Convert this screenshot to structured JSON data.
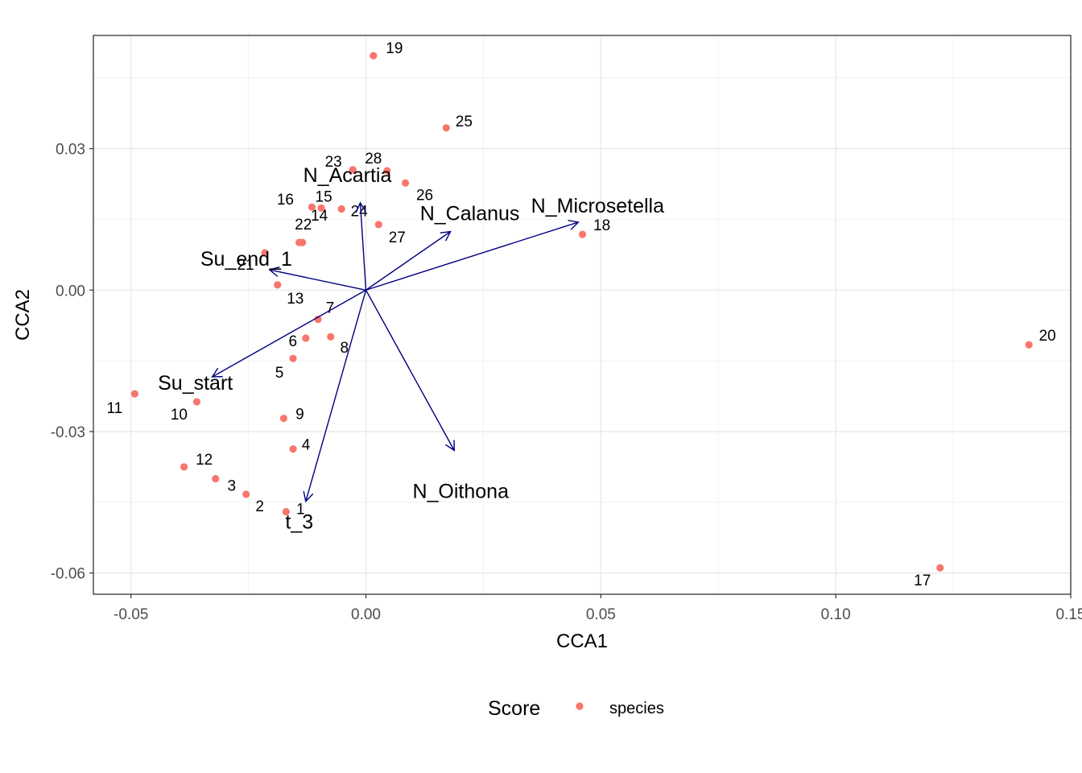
{
  "chart_data": {
    "type": "scatter",
    "xlabel": "CCA1",
    "ylabel": "CCA2",
    "xlim": [
      -0.058,
      0.15
    ],
    "ylim": [
      -0.0645,
      0.054
    ],
    "x_ticks": [
      -0.05,
      0.0,
      0.05,
      0.1,
      0.15
    ],
    "x_tick_labels": [
      "-0.05",
      "0.00",
      "0.05",
      "0.10",
      "0.15"
    ],
    "y_ticks": [
      -0.06,
      -0.03,
      0.0,
      0.03
    ],
    "y_tick_labels": [
      "-0.06",
      "-0.03",
      "0.00",
      "0.03"
    ],
    "grid": true,
    "legend": {
      "title": "Score",
      "position": "bottom",
      "entries": [
        {
          "label": "species",
          "color": "#F8766D"
        }
      ]
    },
    "series": [
      {
        "name": "species",
        "color": "#F8766D",
        "points": [
          {
            "label": "1",
            "x": -0.017,
            "y": -0.047
          },
          {
            "label": "2",
            "x": -0.0255,
            "y": -0.0433
          },
          {
            "label": "3",
            "x": -0.032,
            "y": -0.04
          },
          {
            "label": "4",
            "x": -0.0155,
            "y": -0.0337
          },
          {
            "label": "5",
            "x": -0.0155,
            "y": -0.0145
          },
          {
            "label": "6",
            "x": -0.0128,
            "y": -0.0102
          },
          {
            "label": "7",
            "x": -0.0102,
            "y": -0.0062
          },
          {
            "label": "8",
            "x": -0.0075,
            "y": -0.0099
          },
          {
            "label": "9",
            "x": -0.0175,
            "y": -0.0272
          },
          {
            "label": "10",
            "x": -0.036,
            "y": -0.0237
          },
          {
            "label": "11",
            "x": -0.0492,
            "y": -0.022
          },
          {
            "label": "12",
            "x": -0.0387,
            "y": -0.0375
          },
          {
            "label": "13",
            "x": -0.0188,
            "y": 0.0011
          },
          {
            "label": "14",
            "x": -0.0142,
            "y": 0.0101
          },
          {
            "label": "15",
            "x": -0.0095,
            "y": 0.0174
          },
          {
            "label": "16",
            "x": -0.0115,
            "y": 0.0176
          },
          {
            "label": "17",
            "x": 0.1222,
            "y": -0.0589
          },
          {
            "label": "18",
            "x": 0.0461,
            "y": 0.0118
          },
          {
            "label": "19",
            "x": 0.0016,
            "y": 0.0497
          },
          {
            "label": "20",
            "x": 0.1411,
            "y": -0.0116
          },
          {
            "label": "21",
            "x": -0.0215,
            "y": 0.0079
          },
          {
            "label": "22",
            "x": -0.0135,
            "y": 0.0101
          },
          {
            "label": "23",
            "x": -0.0028,
            "y": 0.0255
          },
          {
            "label": "24",
            "x": -0.0052,
            "y": 0.0172
          },
          {
            "label": "25",
            "x": 0.0171,
            "y": 0.0344
          },
          {
            "label": "26",
            "x": 0.0084,
            "y": 0.0227
          },
          {
            "label": "27",
            "x": 0.0027,
            "y": 0.0139
          },
          {
            "label": "28",
            "x": 0.0045,
            "y": 0.0253
          }
        ]
      }
    ],
    "vectors": [
      {
        "label": "N_Acartia",
        "x": -0.0012,
        "y": 0.0185
      },
      {
        "label": "N_Calanus",
        "x": 0.018,
        "y": 0.0124
      },
      {
        "label": "N_Microsetella",
        "x": 0.0452,
        "y": 0.0144
      },
      {
        "label": "Su_end_1",
        "x": -0.0205,
        "y": 0.0043
      },
      {
        "label": "Su_start",
        "x": -0.0327,
        "y": -0.0184
      },
      {
        "label": "N_Oithona",
        "x": 0.0188,
        "y": -0.034
      },
      {
        "label": "t_3",
        "x": -0.0128,
        "y": -0.0448
      }
    ],
    "vector_color": "#000080"
  }
}
